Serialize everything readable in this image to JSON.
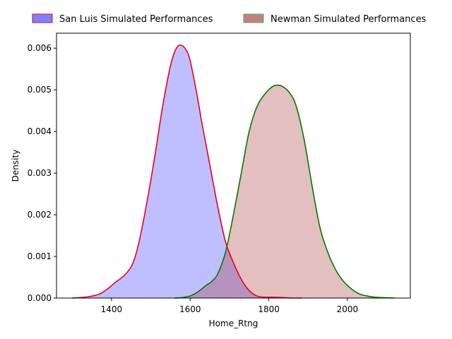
{
  "chart_data": {
    "type": "area",
    "xlabel": "Home_Rtng",
    "ylabel": "Density",
    "xlim": [
      1260,
      2160
    ],
    "ylim": [
      0,
      0.00636
    ],
    "xticks": [
      1400,
      1600,
      1800,
      2000
    ],
    "yticks": [
      0.0,
      0.001,
      0.002,
      0.003,
      0.004,
      0.005,
      0.006
    ],
    "ytick_labels": [
      "0.000",
      "0.001",
      "0.002",
      "0.003",
      "0.004",
      "0.005",
      "0.006"
    ],
    "xtick_labels": [
      "1400",
      "1600",
      "1800",
      "2000"
    ],
    "grid": false,
    "legend_position": "top-center",
    "series": [
      {
        "name": "San Luis Simulated Performances",
        "fill_color": "#0000ff",
        "fill_opacity": 0.25,
        "line_color": "#e8001c",
        "legend_fill": "#7f7fff",
        "legend_edge": "#e8001c",
        "x": [
          1300,
          1340,
          1370,
          1390,
          1410,
          1425,
          1440,
          1455,
          1470,
          1490,
          1510,
          1530,
          1550,
          1565,
          1578,
          1590,
          1600,
          1615,
          1630,
          1650,
          1670,
          1690,
          1710,
          1730,
          1750,
          1770,
          1790,
          1810,
          1840,
          1860,
          1885
        ],
        "y": [
          0.0,
          3e-05,
          0.0001,
          0.00022,
          0.00038,
          0.00048,
          0.00062,
          0.00085,
          0.00135,
          0.0023,
          0.0034,
          0.0046,
          0.00558,
          0.006,
          0.00607,
          0.00595,
          0.0057,
          0.005,
          0.0042,
          0.0032,
          0.0022,
          0.00135,
          0.00085,
          0.00045,
          0.00018,
          5e-05,
          2e-05,
          2e-05,
          1e-05,
          0.0,
          0.0
        ]
      },
      {
        "name": "Newman Simulated Performances",
        "fill_color": "#a52a2a",
        "fill_opacity": 0.3,
        "line_color": "#007a00",
        "legend_fill": "#c3807f",
        "legend_edge": "#4caf50",
        "x": [
          1560,
          1580,
          1600,
          1620,
          1640,
          1655,
          1670,
          1690,
          1710,
          1730,
          1750,
          1770,
          1790,
          1810,
          1825,
          1840,
          1855,
          1870,
          1890,
          1910,
          1930,
          1950,
          1970,
          1990,
          2010,
          2030,
          2050,
          2070,
          2090,
          2120
        ],
        "y": [
          0.0,
          1e-05,
          5e-05,
          0.00015,
          0.0003,
          0.0004,
          0.00058,
          0.0011,
          0.002,
          0.003,
          0.004,
          0.0046,
          0.0049,
          0.00508,
          0.00511,
          0.00505,
          0.0049,
          0.0046,
          0.0038,
          0.0027,
          0.0017,
          0.0011,
          0.00068,
          0.0004,
          0.00022,
          0.0001,
          5e-05,
          2e-05,
          1e-05,
          0.0
        ]
      }
    ]
  }
}
